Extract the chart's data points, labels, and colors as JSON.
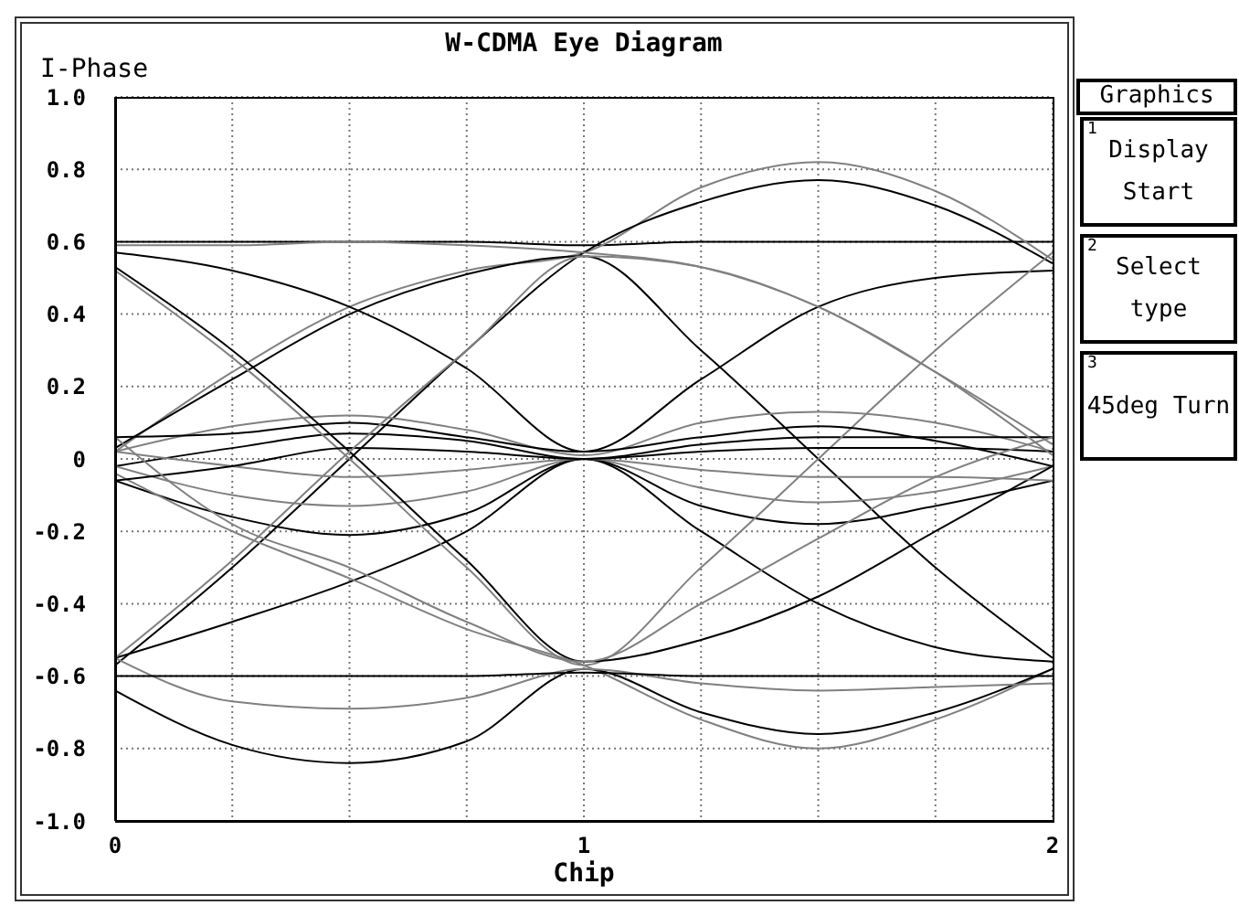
{
  "chart_data": [
    {
      "type": "line",
      "title": "W-CDMA Eye Diagram",
      "xlabel": "Chip",
      "ylabel": "I-Phase",
      "x": [
        0,
        0.25,
        0.5,
        0.75,
        1,
        1.25,
        1.5,
        1.75,
        2
      ],
      "xlim": [
        0,
        2
      ],
      "xticks": [
        0,
        {
          "value": 0.25,
          "label": null
        },
        {
          "value": 0.5,
          "label": null
        },
        {
          "value": 0.75,
          "label": null
        },
        1,
        {
          "value": 1.25,
          "label": null
        },
        {
          "value": 1.5,
          "label": null
        },
        {
          "value": 1.75,
          "label": null
        },
        2
      ],
      "ylim": [
        -1,
        1
      ],
      "yticks": [
        {
          "value": -1,
          "label": "-1.0"
        },
        -0.8,
        -0.6,
        -0.4,
        -0.2,
        0,
        0.2,
        0.4,
        0.6,
        0.8,
        {
          "value": 1,
          "label": "1.0"
        }
      ],
      "grid": true,
      "line_style": "solid",
      "series": [
        {
          "color": "#000000",
          "values": [
            0.6,
            0.6,
            0.6,
            0.6,
            0.59,
            0.6,
            0.6,
            0.6,
            0.6
          ]
        },
        {
          "color": "#808080",
          "values": [
            0.02,
            0.24,
            0.42,
            0.52,
            0.57,
            0.75,
            0.82,
            0.74,
            0.55
          ]
        },
        {
          "color": "#000000",
          "values": [
            -0.57,
            -0.3,
            0.0,
            0.3,
            0.57,
            0.71,
            0.77,
            0.7,
            0.54
          ]
        },
        {
          "color": "#808080",
          "values": [
            0.59,
            0.59,
            0.6,
            0.59,
            0.57,
            0.53,
            0.42,
            0.24,
            0.04
          ]
        },
        {
          "color": "#000000",
          "values": [
            0.03,
            0.22,
            0.4,
            0.51,
            0.56,
            0.3,
            0.0,
            -0.3,
            -0.55
          ]
        },
        {
          "color": "#000000",
          "values": [
            0.57,
            0.52,
            0.42,
            0.25,
            0.02,
            0.22,
            0.42,
            0.5,
            0.52
          ]
        },
        {
          "color": "#808080",
          "values": [
            0.02,
            0.09,
            0.12,
            0.08,
            0.01,
            0.1,
            0.13,
            0.1,
            0.02
          ]
        },
        {
          "color": "#000000",
          "values": [
            -0.02,
            0.03,
            0.07,
            0.05,
            0.0,
            0.04,
            0.06,
            0.06,
            0.06
          ]
        },
        {
          "color": "#808080",
          "values": [
            -0.02,
            -0.1,
            -0.13,
            -0.09,
            0.0,
            -0.08,
            -0.12,
            -0.09,
            -0.02
          ]
        },
        {
          "color": "#000000",
          "values": [
            -0.06,
            -0.16,
            -0.21,
            -0.15,
            0.0,
            -0.13,
            -0.18,
            -0.13,
            -0.06
          ]
        },
        {
          "color": "#000000",
          "values": [
            -0.55,
            -0.45,
            -0.34,
            -0.2,
            0.0,
            -0.2,
            -0.4,
            -0.52,
            -0.56
          ]
        },
        {
          "color": "#808080",
          "values": [
            0.52,
            0.28,
            0.0,
            -0.3,
            -0.57,
            -0.3,
            0.0,
            0.3,
            0.57
          ]
        },
        {
          "color": "#000000",
          "values": [
            0.53,
            0.3,
            0.02,
            -0.28,
            -0.56,
            -0.5,
            -0.38,
            -0.2,
            -0.02
          ]
        },
        {
          "color": "#808080",
          "values": [
            -0.04,
            -0.2,
            -0.33,
            -0.47,
            -0.57,
            -0.72,
            -0.8,
            -0.72,
            -0.58
          ]
        },
        {
          "color": "#000000",
          "values": [
            -0.64,
            -0.79,
            -0.84,
            -0.78,
            -0.58,
            -0.7,
            -0.76,
            -0.7,
            -0.58
          ]
        },
        {
          "color": "#808080",
          "values": [
            -0.55,
            -0.67,
            -0.69,
            -0.66,
            -0.58,
            -0.62,
            -0.64,
            -0.63,
            -0.62
          ]
        },
        {
          "color": "#000000",
          "values": [
            -0.6,
            -0.6,
            -0.6,
            -0.6,
            -0.59,
            -0.6,
            -0.6,
            -0.6,
            -0.6
          ]
        },
        {
          "color": "#000000",
          "values": [
            0.06,
            0.07,
            0.1,
            0.06,
            0.02,
            0.06,
            0.09,
            0.05,
            -0.02
          ]
        },
        {
          "color": "#808080",
          "values": [
            0.02,
            -0.02,
            -0.05,
            -0.03,
            0.0,
            -0.03,
            -0.05,
            -0.05,
            -0.06
          ]
        },
        {
          "color": "#000000",
          "values": [
            -0.06,
            -0.02,
            0.03,
            0.02,
            0.0,
            0.02,
            0.03,
            0.03,
            0.02
          ]
        },
        {
          "color": "#808080",
          "values": [
            -0.55,
            -0.28,
            0.02,
            0.3,
            0.56,
            0.53,
            0.42,
            0.24,
            0.01
          ]
        },
        {
          "color": "#808080",
          "values": [
            0.06,
            -0.18,
            -0.3,
            -0.45,
            -0.56,
            -0.4,
            -0.22,
            -0.05,
            0.06
          ]
        }
      ]
    },
    {
      "type": "other",
      "title": "Graphics",
      "annotations": [
        "1",
        "Display Start",
        "2",
        "Select type",
        "3",
        "45deg Turn"
      ]
    }
  ]
}
